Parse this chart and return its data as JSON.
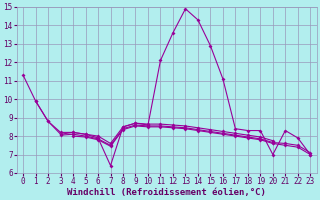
{
  "x": [
    0,
    1,
    2,
    3,
    4,
    5,
    6,
    7,
    8,
    9,
    10,
    11,
    12,
    13,
    14,
    15,
    16,
    17,
    18,
    19,
    20,
    21,
    22,
    23
  ],
  "lines": [
    [
      11.3,
      9.9,
      8.8,
      8.1,
      8.2,
      8.1,
      7.9,
      6.4,
      8.5,
      8.7,
      8.6,
      12.1,
      13.6,
      14.9,
      14.3,
      12.9,
      11.1,
      8.4,
      8.3,
      8.3,
      7.0,
      8.3,
      7.9,
      7.0
    ],
    [
      null,
      9.9,
      8.8,
      8.2,
      8.2,
      8.1,
      8.0,
      7.6,
      8.5,
      8.7,
      8.65,
      8.65,
      8.6,
      8.55,
      8.45,
      8.35,
      8.25,
      8.15,
      8.05,
      7.95,
      7.75,
      null,
      null,
      null
    ],
    [
      null,
      null,
      null,
      8.05,
      8.1,
      8.0,
      7.85,
      7.5,
      8.4,
      8.6,
      8.55,
      8.55,
      8.5,
      8.45,
      8.35,
      8.25,
      8.15,
      8.05,
      7.95,
      7.85,
      7.65,
      7.6,
      7.5,
      7.1
    ],
    [
      null,
      null,
      null,
      null,
      8.0,
      7.95,
      7.8,
      7.45,
      8.35,
      8.55,
      8.5,
      8.5,
      8.45,
      8.4,
      8.3,
      8.2,
      8.1,
      8.0,
      7.9,
      7.8,
      7.6,
      7.5,
      7.4,
      7.0
    ]
  ],
  "color": "#990099",
  "bg_color": "#b2eeee",
  "grid_color": "#9999bb",
  "ylim": [
    6,
    15
  ],
  "xlim": [
    -0.5,
    23.5
  ],
  "yticks": [
    6,
    7,
    8,
    9,
    10,
    11,
    12,
    13,
    14,
    15
  ],
  "xticks": [
    0,
    1,
    2,
    3,
    4,
    5,
    6,
    7,
    8,
    9,
    10,
    11,
    12,
    13,
    14,
    15,
    16,
    17,
    18,
    19,
    20,
    21,
    22,
    23
  ],
  "xlabel": "Windchill (Refroidissement éolien,°C)",
  "tick_fontsize": 5.5,
  "label_fontsize": 6.5,
  "lw": 0.8,
  "ms": 2.0
}
